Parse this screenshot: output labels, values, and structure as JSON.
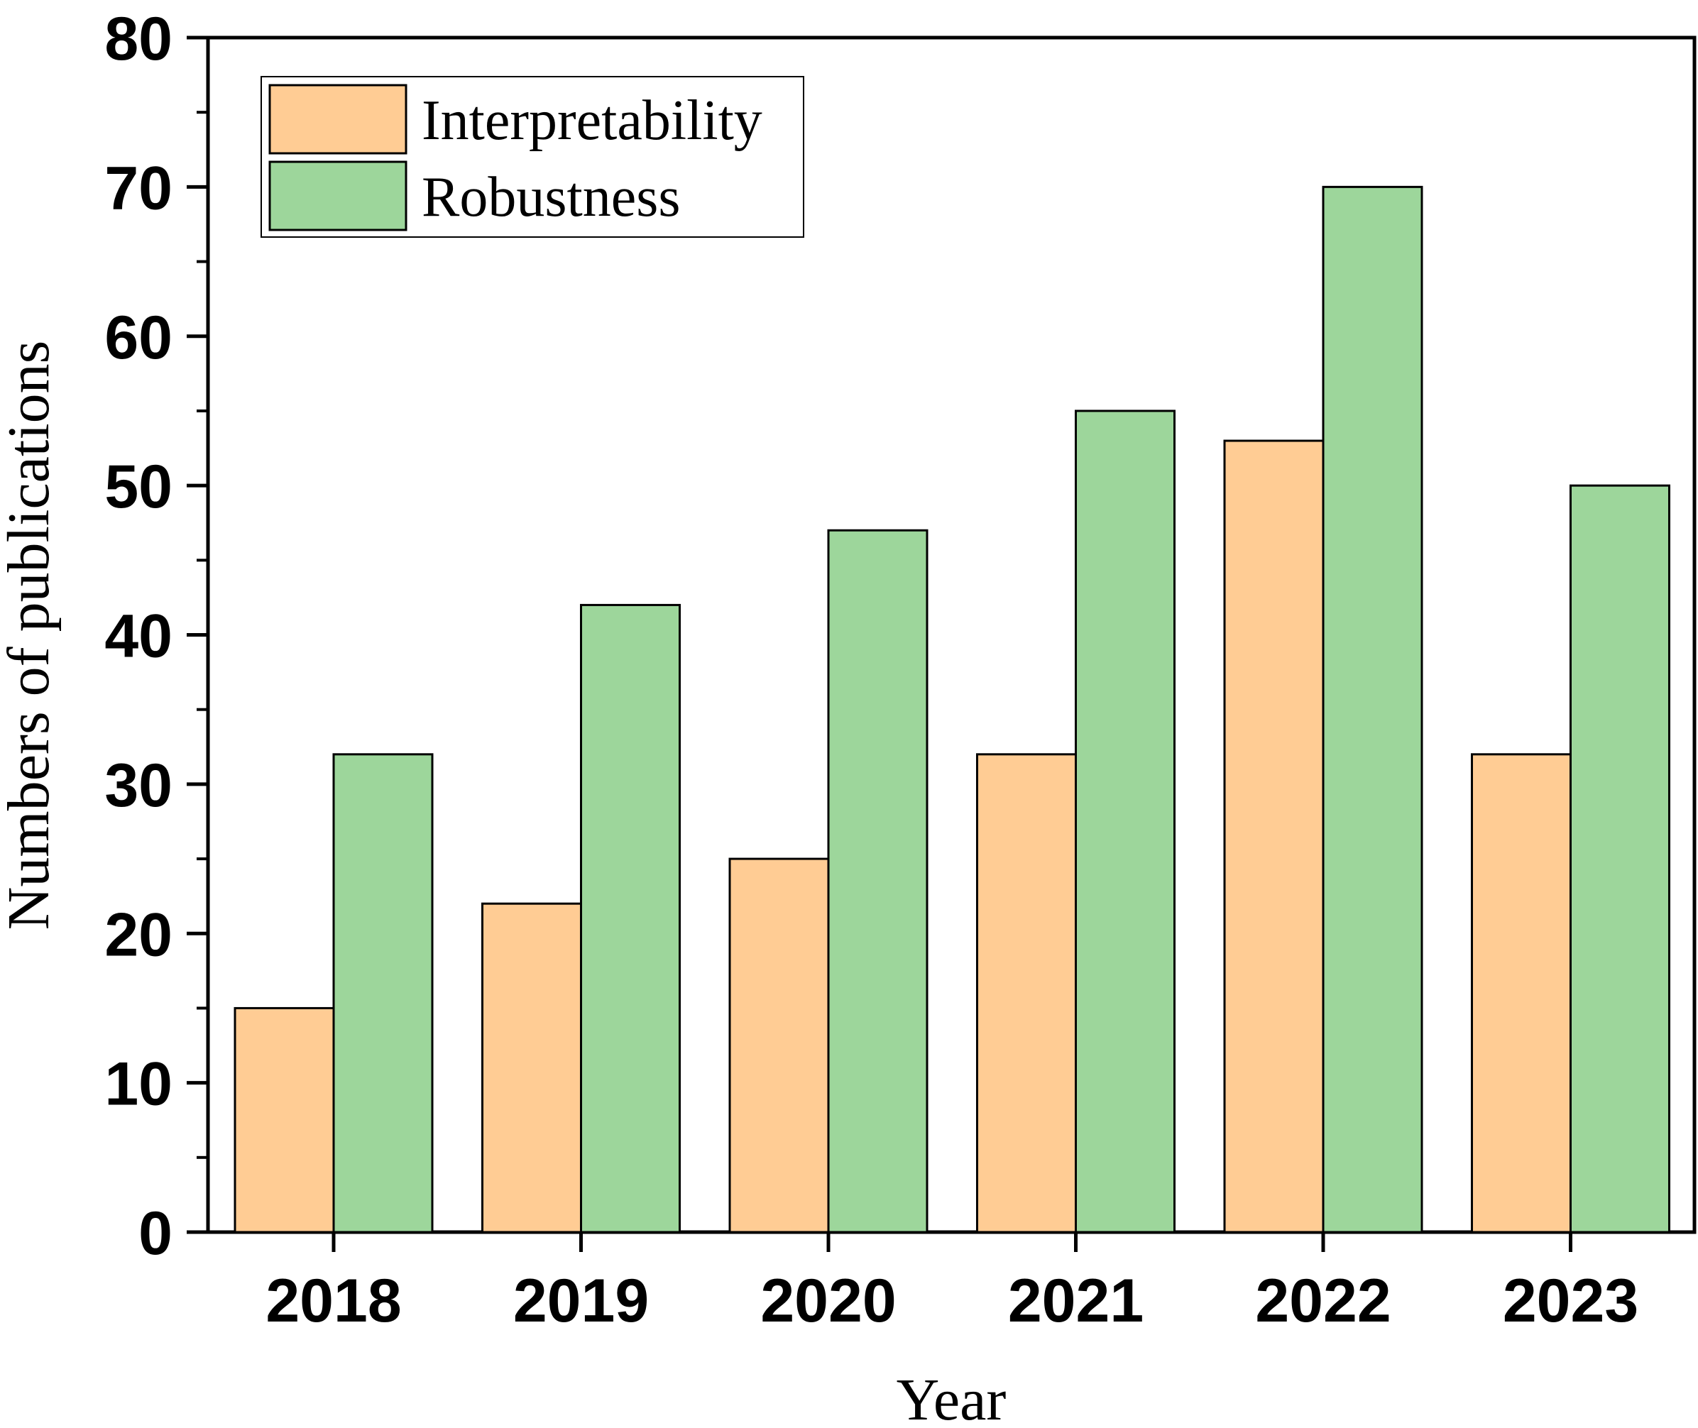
{
  "chart_data": {
    "type": "bar",
    "title": "",
    "xlabel": "Year",
    "ylabel": "Numbers of publications",
    "categories": [
      "2018",
      "2019",
      "2020",
      "2021",
      "2022",
      "2023"
    ],
    "series": [
      {
        "name": "Interpretability",
        "color": "#FFCC94",
        "values": [
          15,
          22,
          25,
          32,
          53,
          32
        ]
      },
      {
        "name": "Robustness",
        "color": "#9DD69B",
        "values": [
          32,
          42,
          47,
          55,
          70,
          50
        ]
      }
    ],
    "ylim": [
      0,
      80
    ],
    "yticks": [
      "0",
      "10",
      "20",
      "30",
      "40",
      "50",
      "60",
      "70",
      "80"
    ],
    "grid": false,
    "legend_position": "top-left"
  }
}
